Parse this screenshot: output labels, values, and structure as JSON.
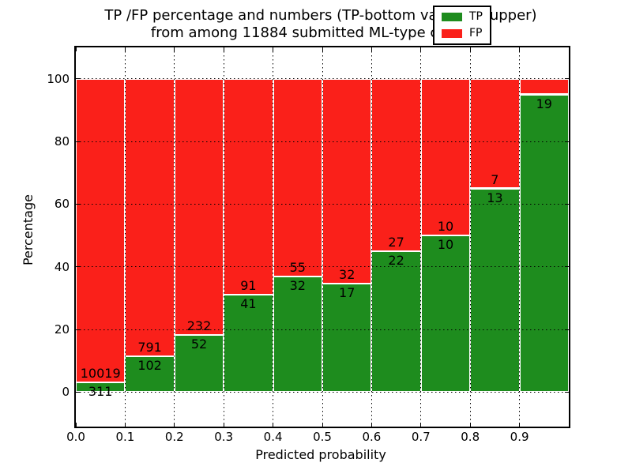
{
  "title": {
    "line1": "TP /FP percentage and numbers (TP-bottom value, FP-upper)",
    "line2": "from among 11884 submitted ML-type contacts"
  },
  "axes": {
    "xlabel": "Predicted probability",
    "ylabel": "Percentage"
  },
  "legend": {
    "position": "upper right",
    "entries": [
      {
        "label": "TP",
        "color": "#1e8c1e"
      },
      {
        "label": "FP",
        "color": "#fa201a"
      }
    ]
  },
  "chart_data": {
    "type": "bar",
    "stacked": true,
    "normalized_to": 100,
    "title": "TP /FP percentage and numbers (TP-bottom value, FP-upper)\nfrom among 11884 submitted ML-type contacts",
    "xlabel": "Predicted probability",
    "ylabel": "Percentage",
    "xlim": [
      0.0,
      1.0
    ],
    "ylim": [
      -11,
      110
    ],
    "grid": true,
    "bin_width": 0.1,
    "bin_edges": [
      0.0,
      0.1,
      0.2,
      0.3,
      0.4,
      0.5,
      0.6,
      0.7,
      0.8,
      0.9,
      1.0
    ],
    "x_ticks": [
      0.0,
      0.1,
      0.2,
      0.3,
      0.4,
      0.5,
      0.6,
      0.7,
      0.8,
      0.9
    ],
    "x_tick_labels": [
      "0.0",
      "0.1",
      "0.2",
      "0.3",
      "0.4",
      "0.5",
      "0.6",
      "0.7",
      "0.8",
      "0.9"
    ],
    "y_ticks": [
      0,
      20,
      40,
      60,
      80,
      100
    ],
    "y_tick_labels": [
      "0",
      "20",
      "40",
      "60",
      "80",
      "100"
    ],
    "series": [
      {
        "name": "TP",
        "color": "#1e8c1e",
        "counts": [
          311,
          102,
          52,
          41,
          32,
          17,
          22,
          10,
          13,
          19
        ]
      },
      {
        "name": "FP",
        "color": "#fa201a",
        "counts": [
          10019,
          791,
          232,
          91,
          55,
          32,
          27,
          10,
          7,
          null
        ]
      }
    ],
    "tp_percent": [
      3.0,
      11.4,
      18.3,
      31.1,
      36.8,
      34.7,
      44.9,
      50.0,
      65.0,
      95.0
    ],
    "bar_labels": {
      "fp": [
        "10019",
        "791",
        "232",
        "91",
        "55",
        "32",
        "27",
        "10",
        "7",
        ""
      ],
      "tp": [
        "311",
        "102",
        "52",
        "41",
        "32",
        "17",
        "22",
        "10",
        "13",
        "19"
      ]
    }
  }
}
